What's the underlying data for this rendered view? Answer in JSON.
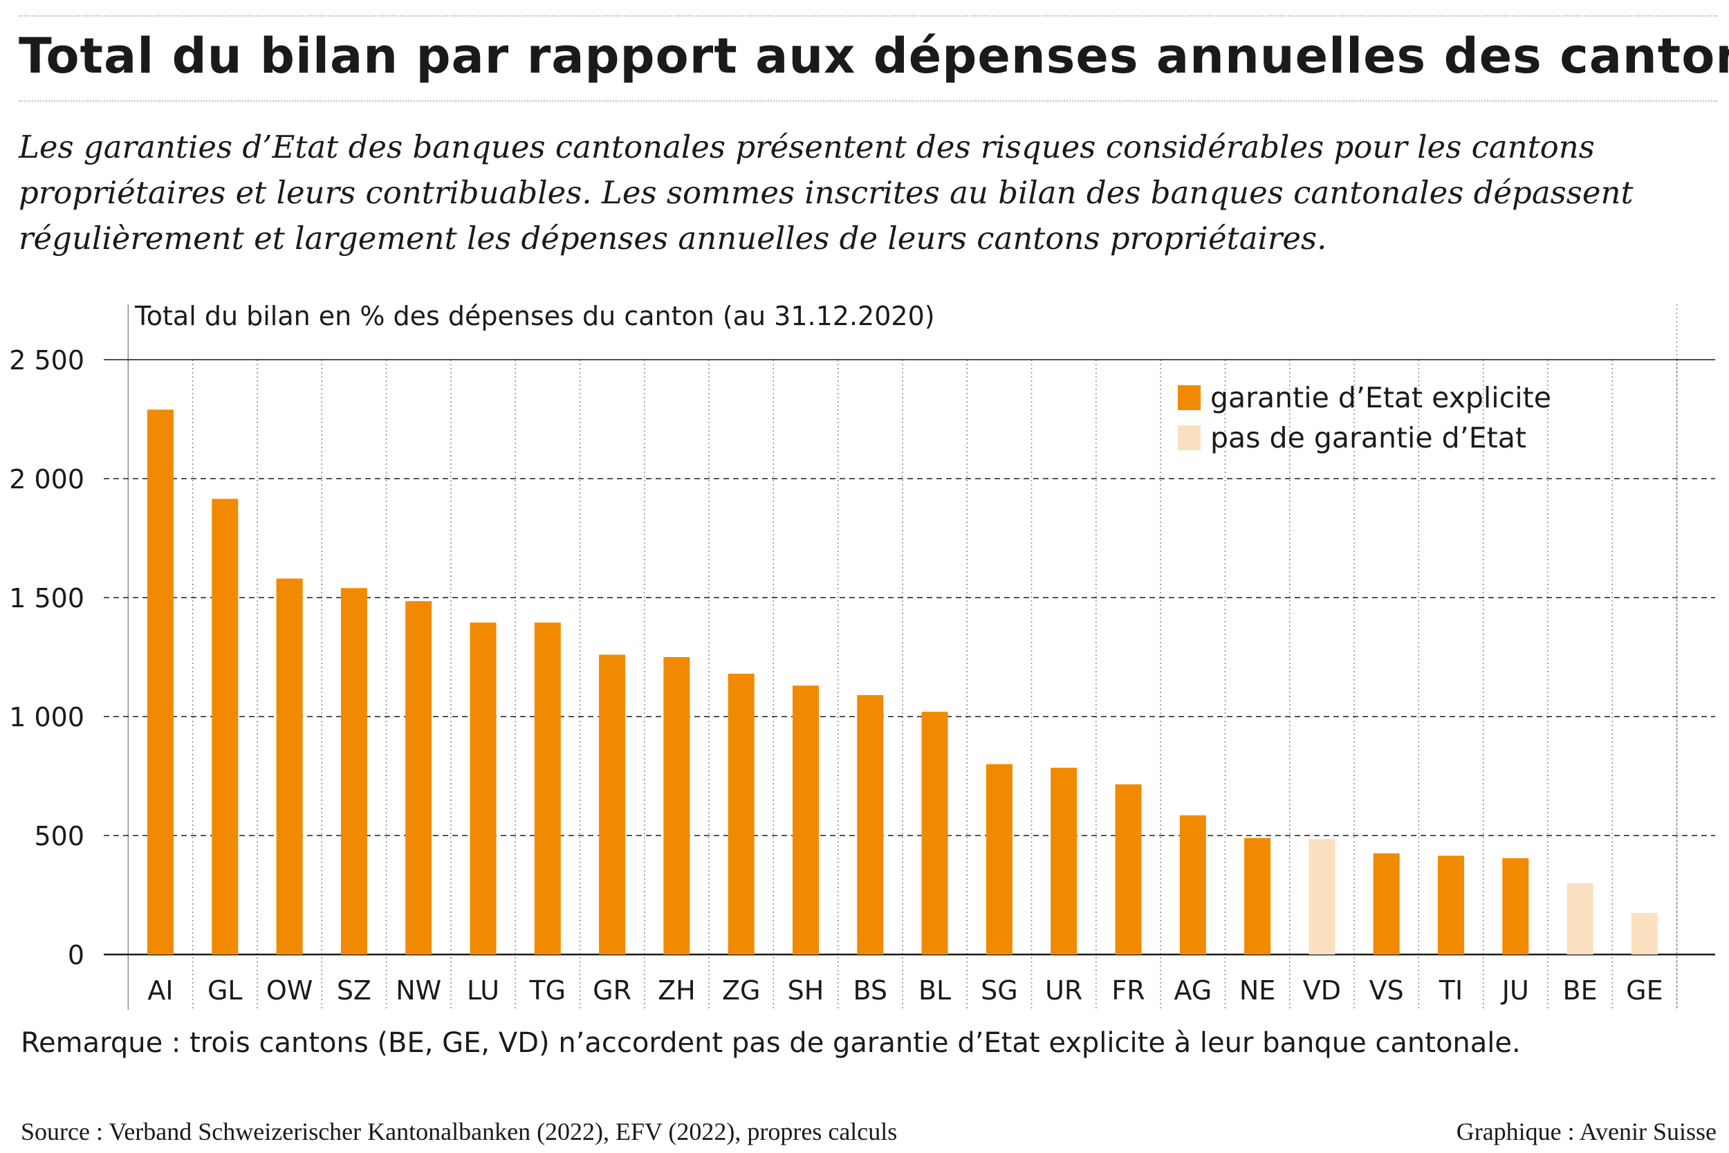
{
  "header": {
    "title": "Total du bilan par rapport aux dépenses annuelles des cantons",
    "subtitle": "Les garanties d’Etat des banques cantonales présentent des risques considérables pour les cantons propriétaires et leurs contribuables. Les sommes inscrites au bilan des banques cantonales dépassent régulièrement et largement les dépenses annuelles de leurs cantons propriétaires."
  },
  "chart_data": {
    "type": "bar",
    "title": "Total du bilan en % des dépenses du canton (au 31.12.2020)",
    "xlabel": "",
    "ylabel": "",
    "ylim": [
      0,
      2500
    ],
    "yticks": [
      "0",
      "500",
      "1 000",
      "1 500",
      "2 000",
      "2 500"
    ],
    "ytick_values": [
      0,
      500,
      1000,
      1500,
      2000,
      2500
    ],
    "grid": true,
    "legend_position": "top-right",
    "legend": [
      {
        "label": "garantie d’Etat explicite",
        "color": "#f18a00"
      },
      {
        "label": "pas de garantie d’Etat",
        "color": "#fbe0c0"
      }
    ],
    "categories": [
      "AI",
      "GL",
      "OW",
      "SZ",
      "NW",
      "LU",
      "TG",
      "GR",
      "ZH",
      "ZG",
      "SH",
      "BS",
      "BL",
      "SG",
      "UR",
      "FR",
      "AG",
      "NE",
      "VD",
      "VS",
      "TI",
      "JU",
      "BE",
      "GE"
    ],
    "values": [
      2290,
      1915,
      1580,
      1540,
      1485,
      1395,
      1395,
      1260,
      1250,
      1180,
      1130,
      1090,
      1020,
      800,
      785,
      715,
      585,
      490,
      485,
      425,
      415,
      405,
      300,
      175
    ],
    "guarantee": [
      true,
      true,
      true,
      true,
      true,
      true,
      true,
      true,
      true,
      true,
      true,
      true,
      true,
      true,
      true,
      true,
      true,
      true,
      false,
      true,
      true,
      true,
      false,
      false
    ]
  },
  "remark": "Remarque : trois cantons (BE, GE, VD) n’accordent pas de garantie d’Etat explicite à leur banque cantonale.",
  "source": "Source : Verband Schweizerischer Kantonalbanken (2022), EFV (2022), propres calculs",
  "credit": "Graphique : Avenir Suisse"
}
